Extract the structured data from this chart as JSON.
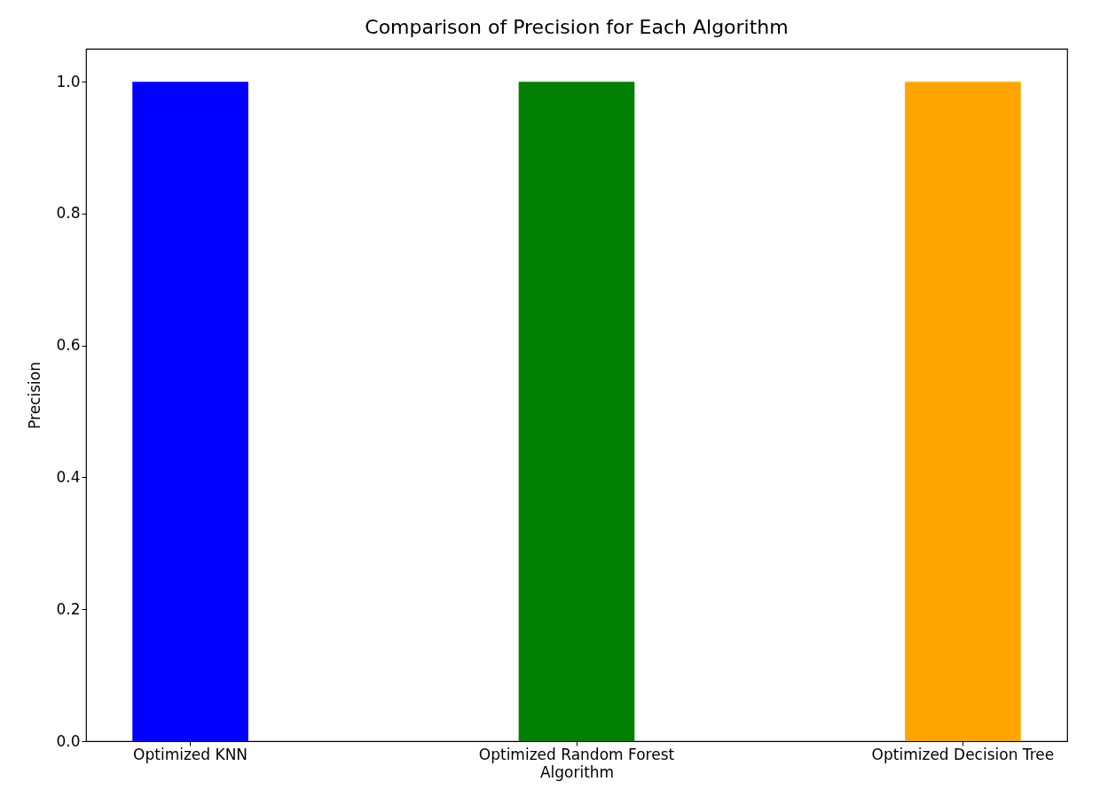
{
  "chart_data": {
    "type": "bar",
    "title": "Comparison of Precision for Each Algorithm",
    "xlabel": "Algorithm",
    "ylabel": "Precision",
    "categories": [
      "Optimized KNN",
      "Optimized Random Forest",
      "Optimized Decision Tree"
    ],
    "values": [
      1.0,
      1.0,
      1.0
    ],
    "colors": [
      "#0000ff",
      "#008000",
      "#ffa500"
    ],
    "ylim": [
      0,
      1.05
    ],
    "yticks": [
      {
        "value": 0,
        "label": "0.0"
      },
      0.2,
      0.4,
      0.6,
      0.8,
      {
        "value": 1,
        "label": "1.0"
      }
    ]
  }
}
